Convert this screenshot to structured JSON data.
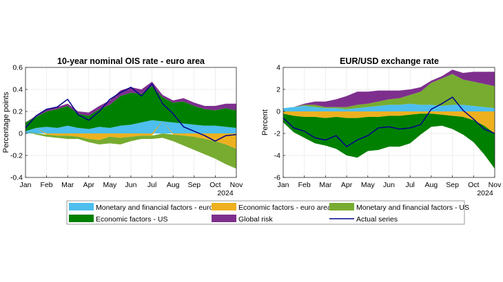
{
  "legend": {
    "items": [
      {
        "key": "mf_ea",
        "label": "Monetary and financial factors - euro area",
        "color": "#4DBEEE",
        "kind": "patch"
      },
      {
        "key": "ec_ea",
        "label": "Economic factors - euro area",
        "color": "#EDB120",
        "kind": "patch"
      },
      {
        "key": "mf_us",
        "label": "Monetary and financial factors - US",
        "color": "#77AC30",
        "kind": "patch"
      },
      {
        "key": "ec_us",
        "label": "Economic factors - US",
        "color": "#008000",
        "kind": "patch"
      },
      {
        "key": "gr",
        "label": "Global risk",
        "color": "#7E2F8E",
        "kind": "patch"
      },
      {
        "key": "actual",
        "label": "Actual series",
        "color": "#00008B",
        "kind": "line"
      }
    ]
  },
  "chart_data": [
    {
      "type": "area",
      "title": "10-year nominal OIS rate - euro area",
      "ylabel": "Percentage points",
      "xlabel": "",
      "x_ticks": [
        "Jan",
        "Feb",
        "Mar",
        "Apr",
        "May",
        "Jun",
        "Jul",
        "Aug",
        "Sep",
        "Oct",
        "Nov"
      ],
      "year_label": "2024",
      "ylim": [
        -0.4,
        0.6
      ],
      "y_ticks": [
        -0.4,
        -0.2,
        0,
        0.2,
        0.4,
        0.6
      ],
      "y_tick_labels": [
        "-0.4",
        "-0.2",
        "0",
        "0.2",
        "0.4",
        "0.6"
      ],
      "grid": true,
      "x": [
        0,
        0.5,
        1,
        1.5,
        2,
        2.5,
        3,
        3.5,
        4,
        4.5,
        5,
        5.5,
        6,
        6.5,
        7,
        7.5,
        8,
        8.5,
        9,
        9.5,
        10
      ],
      "series": [
        {
          "key": "mf_ea",
          "values": [
            0.02,
            0.05,
            0.06,
            0.05,
            0.07,
            0.05,
            0.04,
            0.06,
            0.05,
            0.07,
            0.08,
            0.1,
            0.12,
            0.11,
            0.1,
            0.09,
            0.08,
            0.07,
            0.07,
            0.06,
            0.05
          ]
        },
        {
          "key": "ec_ea",
          "values": [
            0,
            0,
            -0.01,
            -0.02,
            -0.02,
            -0.03,
            -0.05,
            -0.06,
            -0.03,
            -0.04,
            -0.03,
            -0.02,
            -0.02,
            0,
            -0.01,
            -0.02,
            -0.03,
            -0.05,
            -0.07,
            -0.1,
            -0.14
          ]
        },
        {
          "key": "mf_us",
          "values": [
            0,
            -0.01,
            -0.02,
            -0.02,
            -0.03,
            -0.02,
            -0.03,
            -0.04,
            -0.06,
            -0.06,
            -0.04,
            -0.03,
            -0.03,
            -0.04,
            -0.06,
            -0.09,
            -0.12,
            -0.14,
            -0.16,
            -0.18,
            -0.18
          ]
        },
        {
          "key": "ec_us",
          "values": [
            0.08,
            0.1,
            0.14,
            0.17,
            0.18,
            0.13,
            0.12,
            0.16,
            0.21,
            0.27,
            0.29,
            0.26,
            0.31,
            0.22,
            0.18,
            0.2,
            0.17,
            0.15,
            0.14,
            0.17,
            0.16
          ]
        },
        {
          "key": "gr",
          "values": [
            0,
            0.01,
            0.02,
            0.02,
            0.02,
            0.02,
            0.03,
            0.03,
            0.04,
            0.05,
            0.05,
            0.04,
            0.04,
            0.02,
            0.02,
            0.03,
            0.03,
            0.03,
            0.04,
            0.04,
            0.06
          ]
        }
      ],
      "actual": [
        0.05,
        0.16,
        0.22,
        0.24,
        0.31,
        0.17,
        0.12,
        0.2,
        0.31,
        0.37,
        0.42,
        0.34,
        0.45,
        0.27,
        0.18,
        0.06,
        0.02,
        -0.02,
        -0.07,
        -0.02,
        -0.01
      ]
    },
    {
      "type": "area",
      "title": "EUR/USD exchange rate",
      "ylabel": "Percent",
      "xlabel": "",
      "x_ticks": [
        "Jan",
        "Feb",
        "Mar",
        "Apr",
        "May",
        "Jun",
        "Jul",
        "Aug",
        "Sep",
        "Oct",
        "Nov"
      ],
      "year_label": "2024",
      "ylim": [
        -6,
        4
      ],
      "y_ticks": [
        -6,
        -4,
        -2,
        0,
        2,
        4
      ],
      "y_tick_labels": [
        "-6",
        "-4",
        "-2",
        "0",
        "2",
        "4"
      ],
      "grid": true,
      "x": [
        0,
        0.5,
        1,
        1.5,
        2,
        2.5,
        3,
        3.5,
        4,
        4.5,
        5,
        5.5,
        6,
        6.5,
        7,
        7.5,
        8,
        8.5,
        9,
        9.5,
        10
      ],
      "series": [
        {
          "key": "mf_ea",
          "values": [
            0.3,
            0.4,
            0.5,
            0.4,
            0.3,
            0.3,
            0.2,
            0.3,
            0.4,
            0.5,
            0.6,
            0.6,
            0.7,
            0.6,
            0.6,
            0.5,
            0.6,
            0.6,
            0.5,
            0.4,
            0.3
          ]
        },
        {
          "key": "ec_ea",
          "values": [
            -0.2,
            -0.4,
            -0.5,
            -0.5,
            -0.6,
            -0.5,
            -0.6,
            -0.6,
            -0.5,
            -0.5,
            -0.4,
            -0.4,
            -0.3,
            -0.2,
            -0.2,
            -0.3,
            -0.4,
            -0.5,
            -0.8,
            -1.3,
            -2
          ]
        },
        {
          "key": "mf_us",
          "values": [
            0,
            0,
            0.1,
            0.2,
            0.1,
            0.1,
            0.2,
            0.3,
            0.3,
            0.4,
            0.5,
            0.6,
            0.8,
            1.2,
            2,
            2.5,
            2.8,
            2.3,
            2.2,
            2.1,
            2
          ]
        },
        {
          "key": "ec_us",
          "values": [
            -0.8,
            -1.5,
            -1.9,
            -2.4,
            -2.5,
            -2.9,
            -3.4,
            -3.6,
            -3.1,
            -3,
            -2.8,
            -2.8,
            -2.6,
            -1.9,
            -1.2,
            -1,
            -1.2,
            -1.6,
            -2,
            -2.6,
            -3.2
          ]
        },
        {
          "key": "gr",
          "values": [
            0,
            0,
            0.1,
            0.3,
            0.5,
            0.7,
            1,
            1.2,
            1.1,
            1,
            0.8,
            0.7,
            0.5,
            0.4,
            0.2,
            0.2,
            0.4,
            0.6,
            0.9,
            1.1,
            1.3
          ]
        }
      ],
      "actual": [
        -0.6,
        -1.5,
        -1.8,
        -2.4,
        -2.6,
        -2.2,
        -3.2,
        -2.6,
        -2.2,
        -1.5,
        -1.4,
        -1.6,
        -1.5,
        -1.2,
        0.2,
        0.7,
        1.3,
        0.1,
        -0.7,
        -1.6,
        -2
      ]
    }
  ]
}
